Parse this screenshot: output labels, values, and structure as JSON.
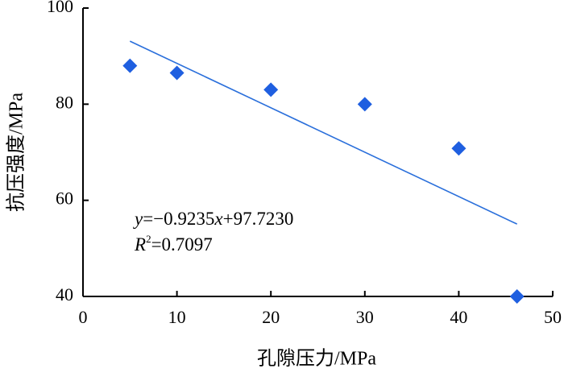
{
  "chart_data": {
    "type": "scatter",
    "xlabel": "孔隙压力/MPa",
    "ylabel": "抗压强度/MPa",
    "xlim": [
      0,
      50
    ],
    "ylim": [
      40,
      100
    ],
    "x_ticks": [
      0,
      10,
      20,
      30,
      40,
      50
    ],
    "y_ticks": [
      40,
      60,
      80,
      100
    ],
    "grid": false,
    "marker": "diamond",
    "marker_color": "#1f5fe0",
    "series": [
      {
        "x": [
          5,
          10,
          20,
          30,
          40,
          46.2
        ],
        "y": [
          88,
          86.5,
          83,
          80,
          70.8,
          40
        ]
      }
    ],
    "trendline": {
      "slope": -0.9235,
      "intercept": 97.723,
      "x_start": 5,
      "x_end": 46.2,
      "color": "#2a6fdb"
    },
    "annotation": {
      "eq_y": "y",
      "eq_mid": "=−0.9235",
      "eq_x": "x",
      "eq_rest": "+97.7230",
      "r2_R": "R",
      "r2_exp": "2",
      "r2_rest": "=0.7097"
    }
  }
}
